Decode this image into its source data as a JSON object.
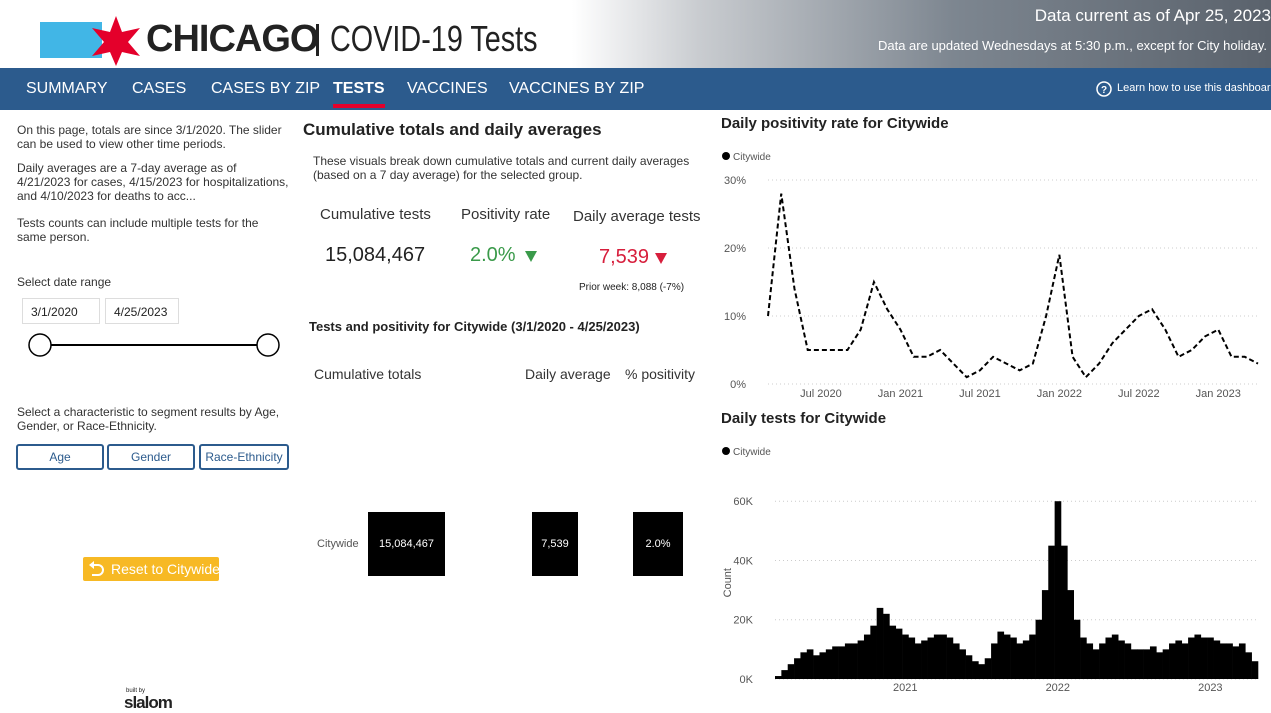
{
  "header": {
    "logo": "CHICAGO",
    "title": "COVID-19 Tests",
    "data_current": "Data current as of Apr 25, 2023",
    "update_note": "Data are updated Wednesdays at 5:30 p.m., except for City holiday."
  },
  "nav": {
    "tabs": [
      "SUMMARY",
      "CASES",
      "CASES BY ZIP",
      "TESTS",
      "VACCINES",
      "VACCINES BY ZIP"
    ],
    "help": "Learn how to use this dashboard"
  },
  "sidebar": {
    "notes": [
      "On this page, totals are since 3/1/2020.  The slider can be used to view other time periods.",
      "Daily averages are a 7-day average as of 4/21/2023 for cases, 4/15/2023 for hospitalizations, and 4/10/2023 for deaths to acc...",
      "Tests counts can include multiple tests for the same person."
    ],
    "date_range_label": "Select date range",
    "start_date": "3/1/2020",
    "end_date": "4/25/2023",
    "segment_prompt": "Select a characteristic to segment results by Age, Gender, or Race-Ethnicity.",
    "segment_buttons": [
      "Age",
      "Gender",
      "Race-Ethnicity"
    ],
    "reset": "Reset to Citywide",
    "credit_small": "built by",
    "credit": "slalom"
  },
  "summary": {
    "title": "Cumulative totals and daily averages",
    "description": "These visuals break down cumulative totals and current daily averages (based on a 7 day average) for the selected group.",
    "kpis": [
      {
        "label": "Cumulative tests",
        "value": "15,084,467"
      },
      {
        "label": "Positivity rate",
        "value": "2.0%"
      },
      {
        "label": "Daily average tests",
        "value": "7,539"
      }
    ],
    "prior_week": "Prior week: 8,088 (-7%)"
  },
  "table": {
    "title": "Tests and positivity for Citywide (3/1/2020 - 4/25/2023)",
    "columns": [
      "Cumulative totals",
      "Daily average",
      "% positivity"
    ],
    "rows": [
      [
        "Citywide",
        "15,084,467",
        "7,539",
        "2.0%"
      ]
    ]
  },
  "chart_data": [
    {
      "type": "line",
      "title": "Daily positivity rate for Citywide",
      "categories": [
        null,
        null,
        null,
        null,
        "Jul 2020",
        null,
        null,
        null,
        null,
        null,
        "Jan 2021",
        null,
        null,
        null,
        null,
        null,
        "Jul 2021",
        null,
        null,
        null,
        null,
        null,
        "Jan 2022",
        null,
        null,
        null,
        null,
        null,
        "Jul 2022",
        null,
        null,
        null,
        null,
        null,
        "Jan 2023",
        null,
        null,
        null
      ],
      "series": [
        {
          "name": "Citywide",
          "color": "#000000",
          "values": [
            10,
            28,
            14,
            5,
            5,
            5,
            5,
            8,
            15,
            11,
            8,
            4,
            4,
            5,
            3,
            1,
            2,
            4,
            3,
            2,
            3,
            10,
            19,
            4,
            1,
            3,
            6,
            8,
            10,
            11,
            8,
            4,
            5,
            7,
            8,
            4,
            4,
            3
          ]
        }
      ],
      "ylim": [
        0,
        30
      ],
      "yticks": [
        {
          "value": 0,
          "label": "0%"
        },
        {
          "value": 10,
          "label": "10%"
        },
        {
          "value": 20,
          "label": "20%"
        },
        {
          "value": 30,
          "label": "30%"
        }
      ],
      "grid": true,
      "dashed": true
    },
    {
      "type": "bar",
      "title": "Daily tests for Citywide",
      "y_label": "Count",
      "categories": [
        null,
        null,
        null,
        null,
        null,
        null,
        null,
        null,
        null,
        null,
        null,
        null,
        null,
        null,
        null,
        null,
        null,
        null,
        null,
        null,
        "2021",
        null,
        null,
        null,
        null,
        null,
        null,
        null,
        null,
        null,
        null,
        null,
        null,
        null,
        null,
        null,
        null,
        null,
        null,
        null,
        null,
        null,
        null,
        null,
        "2022",
        null,
        null,
        null,
        null,
        null,
        null,
        null,
        null,
        null,
        null,
        null,
        null,
        null,
        null,
        null,
        null,
        null,
        null,
        null,
        null,
        null,
        null,
        null,
        "2023",
        null,
        null,
        null,
        null,
        null,
        null,
        null
      ],
      "series": [
        {
          "name": "Citywide",
          "color": "#000000",
          "values": [
            1000,
            3000,
            5000,
            7000,
            9000,
            10000,
            8000,
            9000,
            10000,
            11000,
            11000,
            12000,
            12000,
            13000,
            15000,
            18000,
            24000,
            22000,
            18000,
            17000,
            15000,
            14000,
            12000,
            13000,
            14000,
            15000,
            15000,
            14000,
            12000,
            10000,
            8000,
            6000,
            5000,
            7000,
            12000,
            16000,
            15000,
            14000,
            12000,
            13000,
            15000,
            20000,
            30000,
            45000,
            60000,
            45000,
            30000,
            20000,
            14000,
            12000,
            10000,
            12000,
            14000,
            15000,
            13000,
            12000,
            10000,
            10000,
            10000,
            11000,
            9000,
            10000,
            12000,
            13000,
            12000,
            14000,
            15000,
            14000,
            14000,
            13000,
            12000,
            12000,
            11000,
            12000,
            9000,
            6000
          ]
        }
      ],
      "ylim": [
        0,
        65000
      ],
      "yticks": [
        {
          "value": 0,
          "label": "0K"
        },
        {
          "value": 20000,
          "label": "20K"
        },
        {
          "value": 40000,
          "label": "40K"
        },
        {
          "value": 60000,
          "label": "60K"
        }
      ],
      "grid": true
    }
  ]
}
